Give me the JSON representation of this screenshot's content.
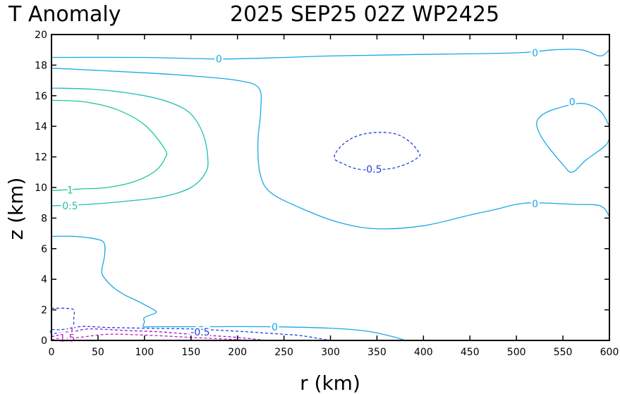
{
  "chart_data": {
    "type": "contour",
    "title_left": "T Anomaly",
    "title_right": "2025 SEP25 02Z   WP2425",
    "xlabel": "r (km)",
    "ylabel": "z (km)",
    "xlim": [
      0,
      600
    ],
    "ylim": [
      0,
      20
    ],
    "xticks": [
      "0",
      "50",
      "100",
      "150",
      "200",
      "250",
      "300",
      "350",
      "400",
      "450",
      "500",
      "550",
      "600"
    ],
    "yticks": [
      "0",
      "2",
      "4",
      "6",
      "8",
      "10",
      "12",
      "14",
      "16",
      "18",
      "20"
    ],
    "colors": {
      "zero": "#1aa7e6",
      "pos05": "#1fbfae",
      "pos1": "#1ec98c",
      "neg05": "#2040e0",
      "neg1": "#8a1ad0",
      "neg15": "#c020c0"
    },
    "contours": [
      {
        "id": "zero-top",
        "level": 0,
        "color_key": "zero",
        "dashed": false,
        "points": [
          [
            0,
            18.5
          ],
          [
            100,
            18.5
          ],
          [
            180,
            18.4
          ],
          [
            250,
            18.5
          ],
          [
            300,
            18.6
          ],
          [
            400,
            18.7
          ],
          [
            500,
            18.8
          ],
          [
            540,
            19
          ],
          [
            570,
            19.0
          ],
          [
            590,
            18.6
          ],
          [
            600,
            19
          ]
        ]
      },
      {
        "id": "zero-mid",
        "level": 0,
        "color_key": "zero",
        "dashed": false,
        "points": [
          [
            0,
            17.8
          ],
          [
            100,
            17.5
          ],
          [
            150,
            17.3
          ],
          [
            200,
            17
          ],
          [
            223,
            16.5
          ],
          [
            225,
            15
          ],
          [
            222,
            13
          ],
          [
            224,
            11
          ],
          [
            235,
            9.7
          ],
          [
            270,
            8.6
          ],
          [
            310,
            7.7
          ],
          [
            350,
            7.3
          ],
          [
            400,
            7.5
          ],
          [
            450,
            8.2
          ],
          [
            480,
            8.6
          ],
          [
            500,
            8.9
          ],
          [
            520,
            9
          ],
          [
            560,
            8.9
          ],
          [
            590,
            8.8
          ],
          [
            600,
            8.1
          ]
        ]
      },
      {
        "id": "zero-right",
        "level": 0,
        "color_key": "zero",
        "dashed": false,
        "points": [
          [
            600,
            14
          ],
          [
            590,
            15
          ],
          [
            570,
            15.5
          ],
          [
            540,
            15.1
          ],
          [
            525,
            14.6
          ],
          [
            522,
            14
          ],
          [
            530,
            13
          ],
          [
            550,
            11.5
          ],
          [
            560,
            11
          ],
          [
            575,
            11.8
          ],
          [
            595,
            12.7
          ],
          [
            600,
            13.2
          ]
        ]
      },
      {
        "id": "zero-low",
        "level": 0,
        "color_key": "zero",
        "dashed": false,
        "points": [
          [
            0,
            6.8
          ],
          [
            25,
            6.8
          ],
          [
            50,
            6.6
          ],
          [
            57,
            6.3
          ],
          [
            57,
            5.5
          ],
          [
            54,
            4.5
          ],
          [
            58,
            4
          ],
          [
            66,
            3.5
          ],
          [
            78,
            3
          ],
          [
            95,
            2.5
          ],
          [
            110,
            2
          ],
          [
            112,
            1.8
          ],
          [
            100,
            1.5
          ],
          [
            100,
            1.2
          ],
          [
            99,
            0.9
          ],
          [
            110,
            0.9
          ],
          [
            170,
            0.9
          ],
          [
            230,
            0.9
          ],
          [
            300,
            0.8
          ],
          [
            340,
            0.6
          ],
          [
            370,
            0.2
          ],
          [
            380,
            0
          ]
        ]
      },
      {
        "id": "pos05",
        "level": 0.5,
        "color_key": "pos05",
        "dashed": false,
        "points": [
          [
            0,
            16.5
          ],
          [
            50,
            16.4
          ],
          [
            100,
            16
          ],
          [
            130,
            15.5
          ],
          [
            150,
            14.8
          ],
          [
            163,
            13.5
          ],
          [
            168,
            12
          ],
          [
            166,
            11
          ],
          [
            150,
            10
          ],
          [
            120,
            9.4
          ],
          [
            80,
            9.1
          ],
          [
            40,
            8.9
          ],
          [
            0,
            8.8
          ]
        ]
      },
      {
        "id": "pos1",
        "level": 1,
        "color_key": "pos1",
        "dashed": false,
        "points": [
          [
            0,
            15.7
          ],
          [
            35,
            15.6
          ],
          [
            70,
            15.1
          ],
          [
            100,
            14.1
          ],
          [
            122,
            12.5
          ],
          [
            122,
            11.9
          ],
          [
            112,
            11.1
          ],
          [
            90,
            10.4
          ],
          [
            60,
            10
          ],
          [
            30,
            9.9
          ],
          [
            0,
            9.8
          ]
        ]
      },
      {
        "id": "neg05-upper",
        "level": -0.5,
        "color_key": "neg05",
        "dashed": true,
        "points": [
          [
            305,
            11.8
          ],
          [
            312,
            11.6
          ],
          [
            330,
            11.2
          ],
          [
            360,
            11.2
          ],
          [
            380,
            11.5
          ],
          [
            395,
            12
          ],
          [
            395,
            12.3
          ],
          [
            385,
            13
          ],
          [
            370,
            13.5
          ],
          [
            350,
            13.6
          ],
          [
            330,
            13.4
          ],
          [
            315,
            12.9
          ],
          [
            305,
            12.2
          ],
          [
            305,
            11.8
          ]
        ]
      },
      {
        "id": "neg05-lower",
        "level": -0.5,
        "color_key": "neg05",
        "dashed": true,
        "points": [
          [
            0,
            2.1
          ],
          [
            15,
            2.1
          ],
          [
            24,
            2
          ],
          [
            24,
            1.5
          ],
          [
            24,
            1.1
          ],
          [
            24,
            0.9
          ],
          [
            20,
            0.8
          ],
          [
            10,
            0.7
          ],
          [
            0,
            0.7
          ],
          [
            0,
            0.5
          ],
          [
            10,
            0.5
          ],
          [
            30,
            0.9
          ],
          [
            60,
            0.85
          ],
          [
            100,
            0.8
          ],
          [
            150,
            0.75
          ],
          [
            200,
            0.6
          ],
          [
            250,
            0.4
          ],
          [
            270,
            0.3
          ],
          [
            300,
            0
          ]
        ]
      },
      {
        "id": "neg1",
        "level": -1,
        "color_key": "neg1",
        "dashed": true,
        "points": [
          [
            0,
            0.25
          ],
          [
            20,
            0.5
          ],
          [
            40,
            0.75
          ],
          [
            80,
            0.65
          ],
          [
            120,
            0.55
          ],
          [
            150,
            0.4
          ],
          [
            200,
            0.2
          ],
          [
            230,
            0
          ]
        ]
      },
      {
        "id": "neg15",
        "level": -1.5,
        "color_key": "neg15",
        "dashed": true,
        "points": [
          [
            0,
            0.05
          ],
          [
            30,
            0.2
          ],
          [
            60,
            0.4
          ],
          [
            100,
            0.35
          ],
          [
            150,
            0.2
          ],
          [
            200,
            0.05
          ],
          [
            220,
            0
          ]
        ]
      }
    ],
    "labels": [
      {
        "text": "0",
        "x": 180,
        "y": 18.4,
        "color_key": "zero"
      },
      {
        "text": "0",
        "x": 520,
        "y": 18.8,
        "color_key": "zero"
      },
      {
        "text": "0",
        "x": 560,
        "y": 15.6,
        "color_key": "zero"
      },
      {
        "text": "0",
        "x": 520,
        "y": 8.95,
        "color_key": "zero"
      },
      {
        "text": "0",
        "x": 240,
        "y": 0.88,
        "color_key": "zero"
      },
      {
        "text": "-0.5",
        "x": 345,
        "y": 11.2,
        "color_key": "neg05"
      },
      {
        "text": "-0.5",
        "x": 160,
        "y": 0.55,
        "color_key": "neg05"
      },
      {
        "text": "1",
        "x": 20,
        "y": 9.85,
        "color_key": "pos1"
      },
      {
        "text": "0.5",
        "x": 20,
        "y": 8.8,
        "color_key": "pos05"
      },
      {
        "text": "-1",
        "x": 20,
        "y": 0.6,
        "color_key": "neg1"
      },
      {
        "text": "-1.5",
        "x": 15,
        "y": 0.15,
        "color_key": "neg15"
      }
    ]
  }
}
